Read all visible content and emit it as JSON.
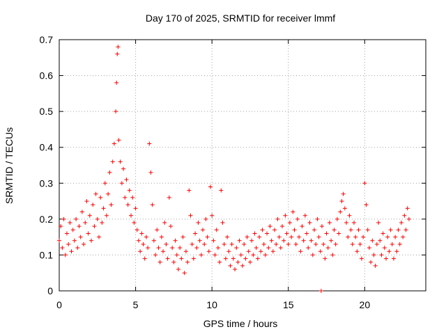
{
  "chart_data": {
    "type": "scatter",
    "title": "Day 170 of 2025, SRMTID for receiver lmmf",
    "xlabel": "GPS time / hours",
    "ylabel": "SRMTID / TECUs",
    "xlim": [
      0,
      24
    ],
    "ylim": [
      0,
      0.7
    ],
    "xticks": [
      "0",
      "5",
      "10",
      "15",
      "20"
    ],
    "yticks": [
      "0",
      "0.1",
      "0.2",
      "0.3",
      "0.4",
      "0.5",
      "0.6",
      "0.7"
    ],
    "grid": true,
    "marker": "+",
    "color": "#ff0000",
    "series": [
      {
        "name": "SRMTID",
        "points": [
          [
            0.0,
            0.14
          ],
          [
            0.1,
            0.18
          ],
          [
            0.2,
            0.12
          ],
          [
            0.3,
            0.2
          ],
          [
            0.4,
            0.1
          ],
          [
            0.5,
            0.16
          ],
          [
            0.6,
            0.13
          ],
          [
            0.7,
            0.19
          ],
          [
            0.8,
            0.11
          ],
          [
            0.9,
            0.17
          ],
          [
            1.0,
            0.14
          ],
          [
            1.1,
            0.2
          ],
          [
            1.2,
            0.12
          ],
          [
            1.3,
            0.18
          ],
          [
            1.4,
            0.15
          ],
          [
            1.5,
            0.22
          ],
          [
            1.6,
            0.13
          ],
          [
            1.7,
            0.19
          ],
          [
            1.8,
            0.25
          ],
          [
            1.9,
            0.16
          ],
          [
            2.0,
            0.21
          ],
          [
            2.1,
            0.14
          ],
          [
            2.2,
            0.24
          ],
          [
            2.3,
            0.18
          ],
          [
            2.4,
            0.27
          ],
          [
            2.5,
            0.2
          ],
          [
            2.6,
            0.15
          ],
          [
            2.7,
            0.26
          ],
          [
            2.8,
            0.19
          ],
          [
            2.9,
            0.23
          ],
          [
            3.0,
            0.3
          ],
          [
            3.1,
            0.21
          ],
          [
            3.2,
            0.27
          ],
          [
            3.3,
            0.33
          ],
          [
            3.4,
            0.24
          ],
          [
            3.5,
            0.36
          ],
          [
            3.6,
            0.41
          ],
          [
            3.7,
            0.5
          ],
          [
            3.75,
            0.58
          ],
          [
            3.8,
            0.66
          ],
          [
            3.85,
            0.68
          ],
          [
            3.9,
            0.42
          ],
          [
            4.0,
            0.36
          ],
          [
            4.1,
            0.3
          ],
          [
            4.2,
            0.34
          ],
          [
            4.3,
            0.26
          ],
          [
            4.4,
            0.31
          ],
          [
            4.5,
            0.24
          ],
          [
            4.6,
            0.28
          ],
          [
            4.7,
            0.21
          ],
          [
            4.8,
            0.26
          ],
          [
            4.9,
            0.19
          ],
          [
            5.0,
            0.23
          ],
          [
            5.1,
            0.17
          ],
          [
            5.2,
            0.14
          ],
          [
            5.3,
            0.11
          ],
          [
            5.4,
            0.16
          ],
          [
            5.5,
            0.13
          ],
          [
            5.6,
            0.09
          ],
          [
            5.7,
            0.15
          ],
          [
            5.8,
            0.12
          ],
          [
            5.9,
            0.41
          ],
          [
            6.0,
            0.33
          ],
          [
            6.1,
            0.24
          ],
          [
            6.2,
            0.14
          ],
          [
            6.3,
            0.1
          ],
          [
            6.4,
            0.17
          ],
          [
            6.5,
            0.12
          ],
          [
            6.6,
            0.08
          ],
          [
            6.7,
            0.15
          ],
          [
            6.8,
            0.11
          ],
          [
            6.9,
            0.19
          ],
          [
            7.0,
            0.13
          ],
          [
            7.1,
            0.09
          ],
          [
            7.2,
            0.26
          ],
          [
            7.3,
            0.18
          ],
          [
            7.4,
            0.12
          ],
          [
            7.5,
            0.08
          ],
          [
            7.6,
            0.14
          ],
          [
            7.7,
            0.1
          ],
          [
            7.8,
            0.06
          ],
          [
            7.9,
            0.12
          ],
          [
            8.0,
            0.09
          ],
          [
            8.1,
            0.15
          ],
          [
            8.2,
            0.05
          ],
          [
            8.3,
            0.11
          ],
          [
            8.4,
            0.08
          ],
          [
            8.5,
            0.28
          ],
          [
            8.6,
            0.21
          ],
          [
            8.7,
            0.13
          ],
          [
            8.8,
            0.09
          ],
          [
            8.9,
            0.16
          ],
          [
            9.0,
            0.12
          ],
          [
            9.1,
            0.19
          ],
          [
            9.2,
            0.14
          ],
          [
            9.3,
            0.1
          ],
          [
            9.4,
            0.17
          ],
          [
            9.5,
            0.13
          ],
          [
            9.6,
            0.2
          ],
          [
            9.7,
            0.15
          ],
          [
            9.8,
            0.11
          ],
          [
            9.9,
            0.29
          ],
          [
            10.0,
            0.21
          ],
          [
            10.1,
            0.14
          ],
          [
            10.2,
            0.1
          ],
          [
            10.3,
            0.17
          ],
          [
            10.4,
            0.12
          ],
          [
            10.5,
            0.08
          ],
          [
            10.6,
            0.28
          ],
          [
            10.7,
            0.19
          ],
          [
            10.8,
            0.13
          ],
          [
            10.9,
            0.09
          ],
          [
            11.0,
            0.15
          ],
          [
            11.1,
            0.11
          ],
          [
            11.2,
            0.07
          ],
          [
            11.3,
            0.13
          ],
          [
            11.4,
            0.09
          ],
          [
            11.5,
            0.06
          ],
          [
            11.6,
            0.12
          ],
          [
            11.7,
            0.08
          ],
          [
            11.8,
            0.14
          ],
          [
            11.9,
            0.1
          ],
          [
            12.0,
            0.07
          ],
          [
            12.1,
            0.13
          ],
          [
            12.2,
            0.09
          ],
          [
            12.3,
            0.15
          ],
          [
            12.4,
            0.11
          ],
          [
            12.5,
            0.08
          ],
          [
            12.6,
            0.14
          ],
          [
            12.7,
            0.1
          ],
          [
            12.8,
            0.16
          ],
          [
            12.9,
            0.12
          ],
          [
            13.0,
            0.09
          ],
          [
            13.1,
            0.15
          ],
          [
            13.2,
            0.11
          ],
          [
            13.3,
            0.17
          ],
          [
            13.4,
            0.13
          ],
          [
            13.5,
            0.1
          ],
          [
            13.6,
            0.16
          ],
          [
            13.7,
            0.12
          ],
          [
            13.8,
            0.18
          ],
          [
            13.9,
            0.14
          ],
          [
            14.0,
            0.11
          ],
          [
            14.1,
            0.17
          ],
          [
            14.2,
            0.13
          ],
          [
            14.3,
            0.2
          ],
          [
            14.4,
            0.15
          ],
          [
            14.5,
            0.12
          ],
          [
            14.6,
            0.18
          ],
          [
            14.7,
            0.14
          ],
          [
            14.8,
            0.21
          ],
          [
            14.9,
            0.16
          ],
          [
            15.0,
            0.13
          ],
          [
            15.1,
            0.19
          ],
          [
            15.2,
            0.15
          ],
          [
            15.3,
            0.22
          ],
          [
            15.4,
            0.17
          ],
          [
            15.5,
            0.13
          ],
          [
            15.6,
            0.2
          ],
          [
            15.7,
            0.15
          ],
          [
            15.8,
            0.11
          ],
          [
            15.9,
            0.18
          ],
          [
            16.0,
            0.14
          ],
          [
            16.1,
            0.21
          ],
          [
            16.2,
            0.16
          ],
          [
            16.3,
            0.12
          ],
          [
            16.4,
            0.19
          ],
          [
            16.5,
            0.14
          ],
          [
            16.6,
            0.1
          ],
          [
            16.7,
            0.17
          ],
          [
            16.8,
            0.13
          ],
          [
            16.9,
            0.2
          ],
          [
            17.0,
            0.15
          ],
          [
            17.1,
            0.11
          ],
          [
            17.2,
            0.18
          ],
          [
            17.3,
            0.13
          ],
          [
            17.4,
            0.09
          ],
          [
            17.5,
            0.16
          ],
          [
            17.6,
            0.12
          ],
          [
            17.7,
            0.19
          ],
          [
            17.8,
            0.14
          ],
          [
            17.9,
            0.1
          ],
          [
            18.0,
            0.17
          ],
          [
            18.1,
            0.13
          ],
          [
            18.2,
            0.2
          ],
          [
            18.3,
            0.16
          ],
          [
            18.4,
            0.22
          ],
          [
            18.5,
            0.25
          ],
          [
            18.6,
            0.27
          ],
          [
            18.7,
            0.23
          ],
          [
            18.8,
            0.19
          ],
          [
            18.9,
            0.15
          ],
          [
            19.0,
            0.21
          ],
          [
            19.1,
            0.17
          ],
          [
            19.2,
            0.13
          ],
          [
            19.3,
            0.19
          ],
          [
            19.4,
            0.15
          ],
          [
            19.5,
            0.11
          ],
          [
            19.6,
            0.17
          ],
          [
            19.7,
            0.13
          ],
          [
            19.8,
            0.09
          ],
          [
            19.9,
            0.15
          ],
          [
            20.0,
            0.3
          ],
          [
            20.1,
            0.24
          ],
          [
            20.2,
            0.17
          ],
          [
            20.3,
            0.12
          ],
          [
            20.4,
            0.08
          ],
          [
            20.5,
            0.14
          ],
          [
            20.6,
            0.1
          ],
          [
            20.7,
            0.07
          ],
          [
            20.8,
            0.13
          ],
          [
            20.9,
            0.19
          ],
          [
            21.0,
            0.14
          ],
          [
            21.1,
            0.1
          ],
          [
            21.2,
            0.16
          ],
          [
            21.3,
            0.12
          ],
          [
            21.4,
            0.09
          ],
          [
            21.5,
            0.15
          ],
          [
            21.6,
            0.11
          ],
          [
            21.7,
            0.17
          ],
          [
            21.8,
            0.13
          ],
          [
            21.9,
            0.09
          ],
          [
            22.0,
            0.15
          ],
          [
            22.1,
            0.11
          ],
          [
            22.2,
            0.17
          ],
          [
            22.3,
            0.13
          ],
          [
            22.4,
            0.19
          ],
          [
            22.5,
            0.15
          ],
          [
            22.6,
            0.21
          ],
          [
            22.7,
            0.17
          ],
          [
            22.8,
            0.23
          ],
          [
            22.9,
            0.2
          ],
          [
            17.15,
            0.0
          ]
        ]
      }
    ]
  }
}
